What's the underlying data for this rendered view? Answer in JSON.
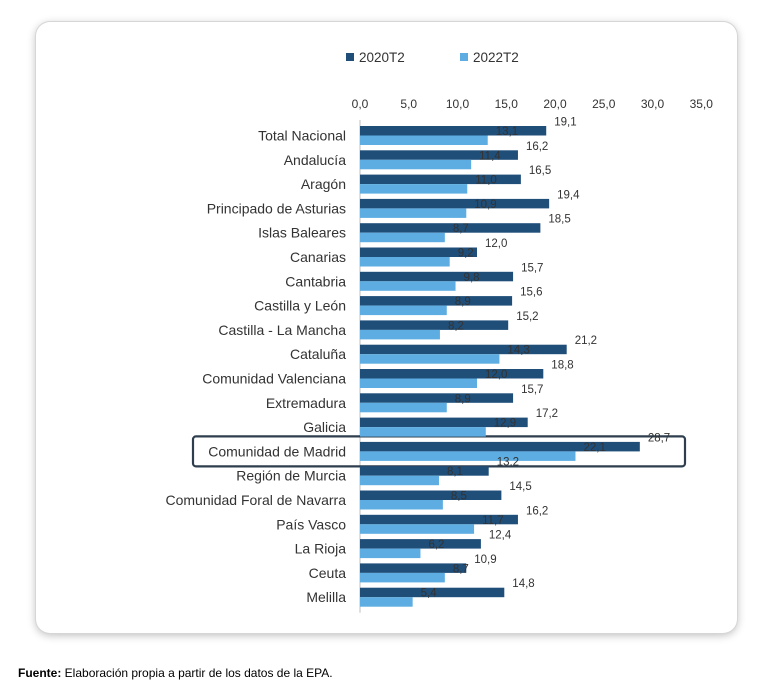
{
  "chart_data": {
    "type": "bar",
    "orientation": "horizontal",
    "categories": [
      "Total Nacional",
      "Andalucía",
      "Aragón",
      "Principado de Asturias",
      "Islas Baleares",
      "Canarias",
      "Cantabria",
      "Castilla y León",
      "Castilla - La Mancha",
      "Cataluña",
      "Comunidad Valenciana",
      "Extremadura",
      "Galicia",
      "Comunidad de Madrid",
      "Región de Murcia",
      "Comunidad Foral de Navarra",
      "País Vasco",
      "La Rioja",
      "Ceuta",
      "Melilla"
    ],
    "series": [
      {
        "name": "2020T2",
        "color": "#1F4E79",
        "values": [
          19.1,
          16.2,
          16.5,
          19.4,
          18.5,
          12.0,
          15.7,
          15.6,
          15.2,
          21.2,
          18.8,
          15.7,
          17.2,
          28.7,
          13.2,
          14.5,
          16.2,
          12.4,
          10.9,
          14.8
        ],
        "labels": [
          "19,1",
          "16,2",
          "16,5",
          "19,4",
          "18,5",
          "12,0",
          "15,7",
          "15,6",
          "15,2",
          "21,2",
          "18,8",
          "15,7",
          "17,2",
          "28,7",
          "13,2",
          "14,5",
          "16,2",
          "12,4",
          "10,9",
          "14,8"
        ]
      },
      {
        "name": "2022T2",
        "color": "#5DADE2",
        "values": [
          13.1,
          11.4,
          11.0,
          10.9,
          8.7,
          9.2,
          9.8,
          8.9,
          8.2,
          14.3,
          12.0,
          8.9,
          12.9,
          22.1,
          8.1,
          8.5,
          11.7,
          6.2,
          8.7,
          5.4
        ],
        "labels": [
          "13,1",
          "11,4",
          "11,0",
          "10,9",
          "8,7",
          "9,2",
          "9,8",
          "8,9",
          "8,2",
          "14,3",
          "12,0",
          "8,9",
          "12,9",
          "22,1",
          "8,1",
          "8,5",
          "11,7",
          "6,2",
          "8,7",
          "5,4"
        ]
      }
    ],
    "xlim": [
      0,
      35
    ],
    "ticks": [
      0,
      5,
      10,
      15,
      20,
      25,
      30,
      35
    ],
    "tick_labels": [
      "0,0",
      "5,0",
      "10,0",
      "15,0",
      "20,0",
      "25,0",
      "30,0",
      "35,0"
    ],
    "axis_position": "top",
    "legend_position": "top",
    "grid": false,
    "highlighted_category": "Comunidad de Madrid",
    "highlight_color": "#2E3E4E"
  },
  "footer": {
    "source_label": "Fuente:",
    "source_text": " Elaboración propia a partir de los datos de la EPA."
  }
}
